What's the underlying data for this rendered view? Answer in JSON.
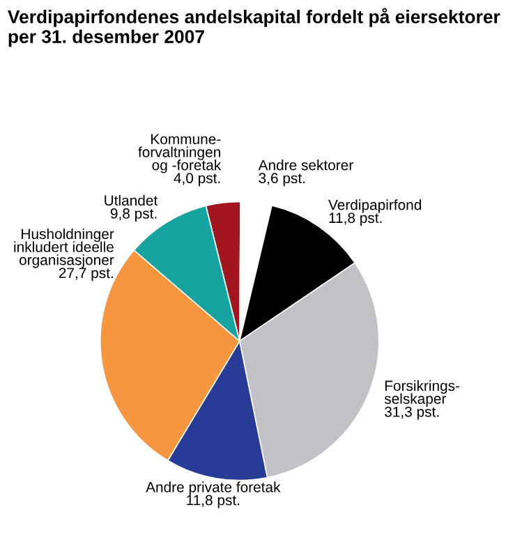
{
  "chart_data": {
    "type": "pie",
    "title": "Verdipapirfondenes andelskapital fordelt på eiersektorer\nper 31. desember 2007",
    "categories": [
      "Kommune-\nforvaltningen\nog -foretak",
      "Andre sektorer",
      "Verdipapirfond",
      "Forsikrings-\nselskaper",
      "Andre private foretak",
      "Husholdninger\ninkludert ideelle\norganisasjoner",
      "Utlandet"
    ],
    "values": [
      4.0,
      3.6,
      11.8,
      31.3,
      11.8,
      27.7,
      9.8
    ],
    "value_labels": [
      "4,0 pst.",
      "3,6 pst.",
      "11,8 pst.",
      "31,3 pst.",
      "11,8 pst.",
      "27,7 pst.",
      "9,8 pst."
    ],
    "colors": [
      "#a3151f",
      "#ffffff",
      "#000000",
      "#c2c2c6",
      "#283b96",
      "#f7963f",
      "#17a3a0"
    ],
    "legend": false
  }
}
